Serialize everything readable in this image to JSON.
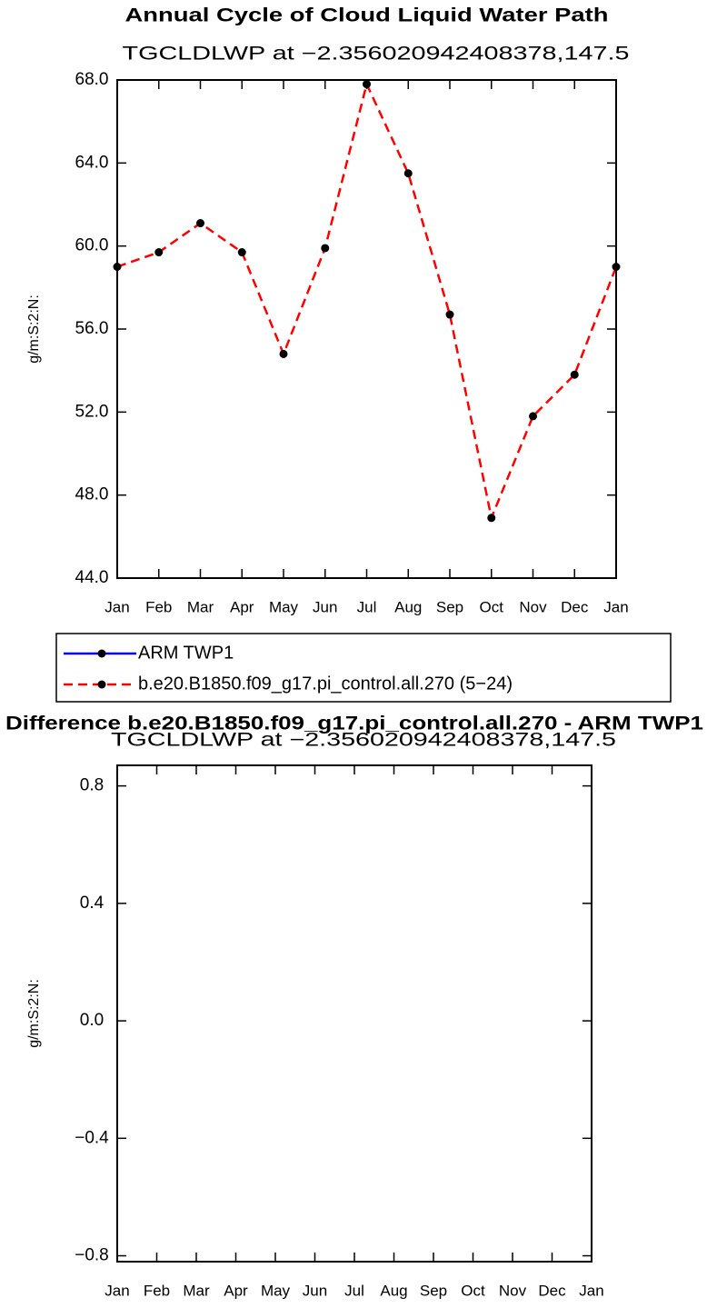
{
  "chart_data": [
    {
      "type": "line",
      "title": "Annual Cycle of Cloud Liquid Water Path",
      "subtitle": "TGCLDLWP at −2.356020942408378,147.5",
      "y_label": "g/m:S:2:N:",
      "categories": [
        "Jan",
        "Feb",
        "Mar",
        "Apr",
        "May",
        "Jun",
        "Jul",
        "Aug",
        "Sep",
        "Oct",
        "Nov",
        "Dec",
        "Jan"
      ],
      "series": [
        {
          "name": "ARM TWP1",
          "color": "#0000ff",
          "dash": false,
          "values": [
            null,
            null,
            null,
            null,
            null,
            null,
            null,
            null,
            null,
            null,
            null,
            null,
            null
          ]
        },
        {
          "name": "b.e20.B1850.f09_g17.pi_control.all.270 (5−24)",
          "color": "#ff0000",
          "dash": true,
          "values": [
            59.0,
            59.7,
            61.1,
            59.7,
            54.8,
            59.9,
            67.8,
            63.5,
            56.7,
            46.9,
            51.8,
            53.8,
            59.0
          ]
        }
      ],
      "marker_color": "#000000",
      "ylim": [
        44,
        68
      ],
      "yticks": [
        {
          "value": 44,
          "label": "44.0"
        },
        {
          "value": 48,
          "label": "48.0"
        },
        {
          "value": 52,
          "label": "52.0"
        },
        {
          "value": 56,
          "label": "56.0"
        },
        {
          "value": 60,
          "label": "60.0"
        },
        {
          "value": 64,
          "label": "64.0"
        },
        {
          "value": 68,
          "label": "68.0"
        }
      ],
      "legend": "below"
    },
    {
      "type": "line",
      "title": "Difference b.e20.B1850.f09_g17.pi_control.all.270 - ARM TWP1",
      "subtitle": "TGCLDLWP at −2.356020942408378,147.5",
      "y_label": "g/m:S:2:N:",
      "categories": [
        "Jan",
        "Feb",
        "Mar",
        "Apr",
        "May",
        "Jun",
        "Jul",
        "Aug",
        "Sep",
        "Oct",
        "Nov",
        "Dec",
        "Jan"
      ],
      "series": [],
      "ylim": [
        -0.82,
        0.87
      ],
      "yticks": [
        {
          "value": -0.8,
          "label": "−0.8"
        },
        {
          "value": -0.4,
          "label": "−0.4"
        },
        {
          "value": 0,
          "label": "0.0"
        },
        {
          "value": 0.4,
          "label": "0.4"
        },
        {
          "value": 0.8,
          "label": "0.8"
        }
      ]
    }
  ]
}
